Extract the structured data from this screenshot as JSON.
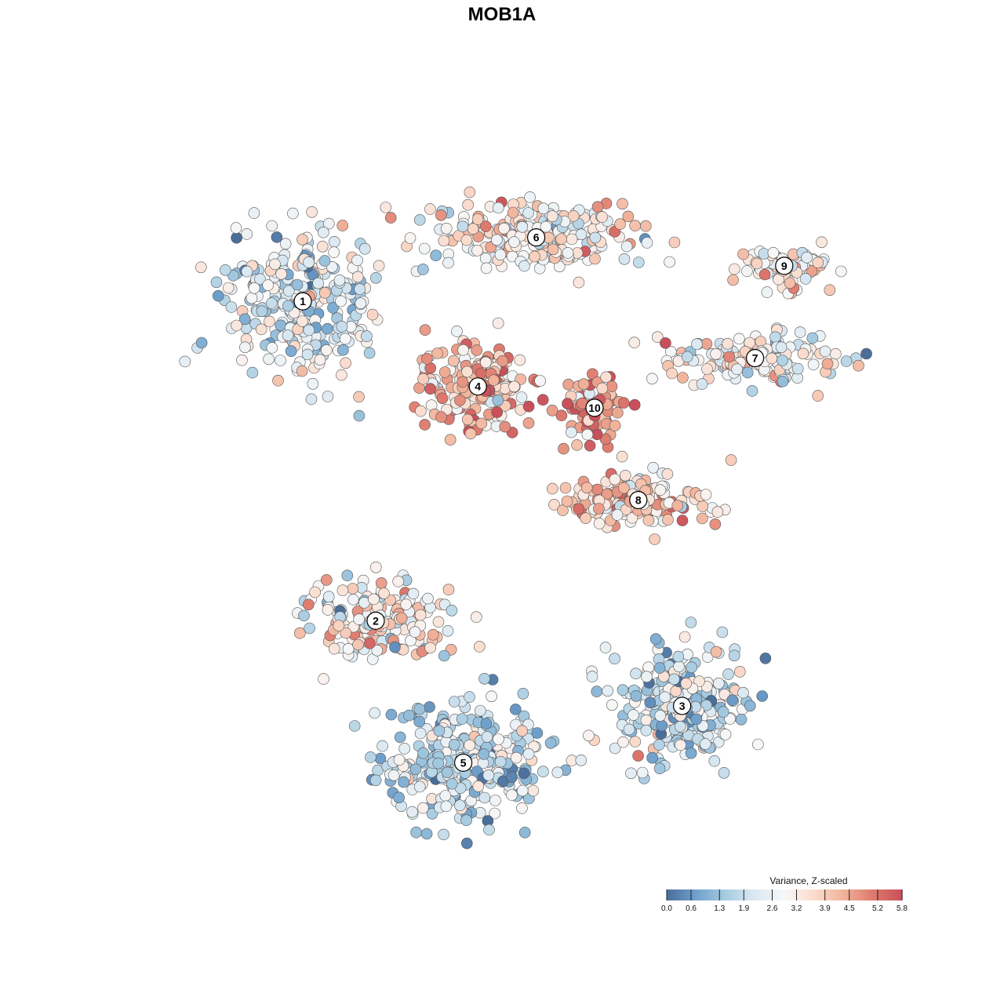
{
  "chart_data": {
    "type": "scatter",
    "title": "MOB1A",
    "xlabel": "",
    "ylabel": "",
    "grid": false,
    "color_scale": {
      "title": "Variance, Z-scaled",
      "min": 0.0,
      "max": 5.8,
      "tick_labels": [
        "0.0",
        "0.6",
        "1.3",
        "1.9",
        "2.6",
        "3.2",
        "3.9",
        "4.5",
        "5.2",
        "5.8"
      ],
      "tick_values": [
        0.0,
        0.6,
        1.3,
        1.9,
        2.6,
        3.2,
        3.9,
        4.5,
        5.2,
        5.8
      ],
      "colors": [
        "#4a6e99",
        "#6fa0cc",
        "#a6cbe1",
        "#dbe9f2",
        "#f7f7f7",
        "#fadccd",
        "#f1b39a",
        "#de7a6e",
        "#c9505a"
      ],
      "placement": "bottom-right"
    },
    "clusters": [
      {
        "label": "1",
        "x": 0.2,
        "y": 0.78,
        "mean_value": 2.3
      },
      {
        "label": "2",
        "x": 0.3,
        "y": 0.33,
        "mean_value": 3.2
      },
      {
        "label": "3",
        "x": 0.72,
        "y": 0.21,
        "mean_value": 2.1
      },
      {
        "label": "4",
        "x": 0.44,
        "y": 0.66,
        "mean_value": 4.2
      },
      {
        "label": "5",
        "x": 0.42,
        "y": 0.13,
        "mean_value": 1.9
      },
      {
        "label": "6",
        "x": 0.52,
        "y": 0.87,
        "mean_value": 3.1
      },
      {
        "label": "7",
        "x": 0.82,
        "y": 0.7,
        "mean_value": 2.8
      },
      {
        "label": "8",
        "x": 0.66,
        "y": 0.5,
        "mean_value": 3.7
      },
      {
        "label": "9",
        "x": 0.86,
        "y": 0.83,
        "mean_value": 3.3
      },
      {
        "label": "10",
        "x": 0.6,
        "y": 0.63,
        "mean_value": 4.6
      }
    ]
  }
}
